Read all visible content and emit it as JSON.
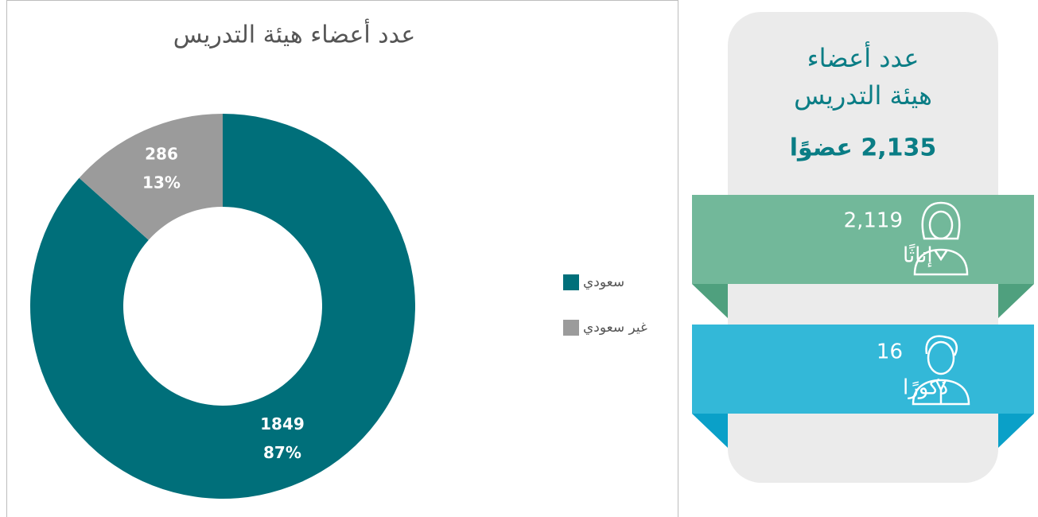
{
  "chart_data": {
    "type": "donut",
    "title": "عدد أعضاء هيئة التدريس",
    "categories": [
      "سعودي",
      "غير سعودي"
    ],
    "values": [
      1849,
      286
    ],
    "percent_labels": [
      "87%",
      "13%"
    ],
    "colors": [
      "#006f7a",
      "#9b9b9b"
    ],
    "legend": "right"
  },
  "infographic": {
    "title_lines": [
      "عدد أعضاء",
      "هيئة التدريس"
    ],
    "total": "2,135 عضوًا",
    "groups": [
      {
        "count": "2,119",
        "label": "إناثًا"
      },
      {
        "count": "16",
        "label": "ذكورًا"
      }
    ]
  }
}
